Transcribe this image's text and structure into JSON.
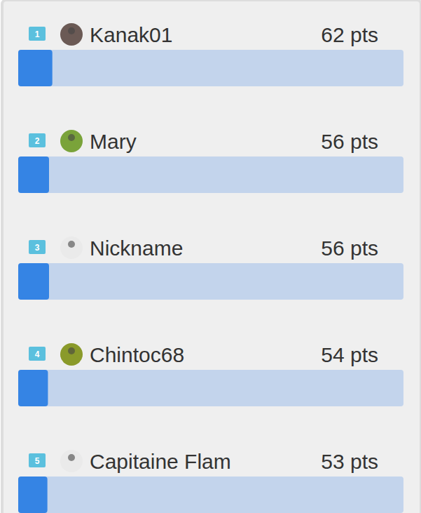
{
  "chart_data": {
    "type": "bar",
    "orientation": "horizontal",
    "categories": [
      "Kanak01",
      "Mary",
      "Nickname",
      "Chintoc68",
      "Capitaine Flam"
    ],
    "ranks": [
      1,
      2,
      3,
      4,
      5
    ],
    "values": [
      62,
      56,
      56,
      54,
      53
    ],
    "value_labels": [
      "62 pts",
      "56 pts",
      "56 pts",
      "54 pts",
      "53 pts"
    ],
    "data_labels": true,
    "xlim": [
      0,
      700
    ],
    "tick_labels": false,
    "color": "#3584e4"
  }
}
